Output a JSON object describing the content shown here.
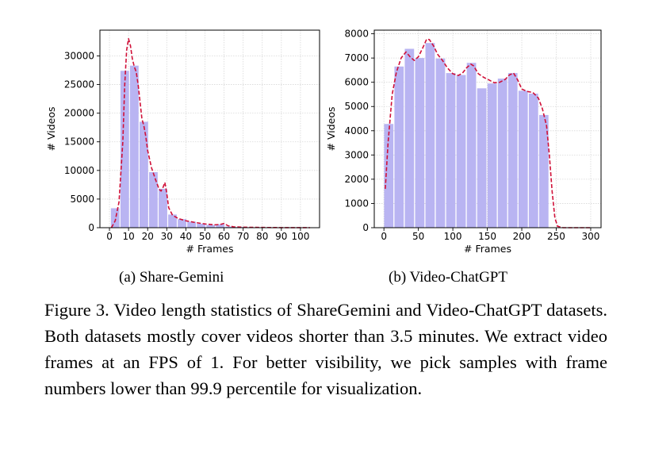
{
  "chart_data": [
    {
      "type": "bar",
      "subcaption": "(a) Share-Gemini",
      "xlabel": "# Frames",
      "ylabel": "# Videos",
      "xlim": [
        -5,
        110
      ],
      "ylim": [
        0,
        34500
      ],
      "xticks": [
        0,
        10,
        20,
        30,
        40,
        50,
        60,
        70,
        80,
        90,
        100
      ],
      "yticks": [
        0,
        5000,
        10000,
        15000,
        20000,
        25000,
        30000
      ],
      "grid": true,
      "bar_width": 4.5,
      "bar_color": "#b9b4f2",
      "curve_color": "#d01038",
      "bars": [
        {
          "x": 3,
          "value": 3400
        },
        {
          "x": 8,
          "value": 27400
        },
        {
          "x": 13,
          "value": 28300
        },
        {
          "x": 18,
          "value": 18500
        },
        {
          "x": 23,
          "value": 9700
        },
        {
          "x": 28,
          "value": 6800
        },
        {
          "x": 33,
          "value": 2300
        },
        {
          "x": 38,
          "value": 1500
        },
        {
          "x": 43,
          "value": 1050
        },
        {
          "x": 48,
          "value": 700
        },
        {
          "x": 53,
          "value": 500
        },
        {
          "x": 58,
          "value": 600
        },
        {
          "x": 63,
          "value": 200
        },
        {
          "x": 68,
          "value": 120
        },
        {
          "x": 73,
          "value": 80
        },
        {
          "x": 78,
          "value": 60
        },
        {
          "x": 83,
          "value": 40
        },
        {
          "x": 88,
          "value": 30
        },
        {
          "x": 93,
          "value": 20
        },
        {
          "x": 98,
          "value": 15
        }
      ],
      "curve": [
        [
          1,
          0
        ],
        [
          3,
          1200
        ],
        [
          5,
          4500
        ],
        [
          7,
          15000
        ],
        [
          8,
          25000
        ],
        [
          9,
          31000
        ],
        [
          10,
          33000
        ],
        [
          11,
          31800
        ],
        [
          12,
          29500
        ],
        [
          13,
          28100
        ],
        [
          14,
          27200
        ],
        [
          15,
          25000
        ],
        [
          16,
          22000
        ],
        [
          17,
          19000
        ],
        [
          18,
          17800
        ],
        [
          19,
          16000
        ],
        [
          20,
          13500
        ],
        [
          22,
          10500
        ],
        [
          24,
          8500
        ],
        [
          26,
          6700
        ],
        [
          27,
          6400
        ],
        [
          28,
          7000
        ],
        [
          29,
          7900
        ],
        [
          30,
          6000
        ],
        [
          31,
          3500
        ],
        [
          33,
          2200
        ],
        [
          36,
          1600
        ],
        [
          40,
          1200
        ],
        [
          45,
          900
        ],
        [
          50,
          650
        ],
        [
          55,
          500
        ],
        [
          58,
          550
        ],
        [
          60,
          750
        ],
        [
          62,
          350
        ],
        [
          65,
          150
        ],
        [
          70,
          80
        ],
        [
          80,
          40
        ],
        [
          90,
          20
        ],
        [
          100,
          10
        ],
        [
          105,
          5
        ]
      ]
    },
    {
      "type": "bar",
      "subcaption": "(b) Video-ChatGPT",
      "xlabel": "# Frames",
      "ylabel": "# Videos",
      "xlim": [
        -14,
        315
      ],
      "ylim": [
        0,
        8150
      ],
      "xticks": [
        0,
        50,
        100,
        150,
        200,
        250,
        300
      ],
      "yticks": [
        0,
        1000,
        2000,
        3000,
        4000,
        5000,
        6000,
        7000,
        8000
      ],
      "grid": true,
      "bar_width": 13.5,
      "bar_color": "#b9b4f2",
      "curve_color": "#d01038",
      "bars": [
        {
          "x": 7,
          "value": 4280
        },
        {
          "x": 22,
          "value": 6650
        },
        {
          "x": 37,
          "value": 7380
        },
        {
          "x": 52,
          "value": 7000
        },
        {
          "x": 67,
          "value": 7620
        },
        {
          "x": 82,
          "value": 6980
        },
        {
          "x": 97,
          "value": 6380
        },
        {
          "x": 112,
          "value": 6300
        },
        {
          "x": 127,
          "value": 6800
        },
        {
          "x": 142,
          "value": 5750
        },
        {
          "x": 157,
          "value": 5950
        },
        {
          "x": 172,
          "value": 6150
        },
        {
          "x": 187,
          "value": 6380
        },
        {
          "x": 202,
          "value": 5650
        },
        {
          "x": 217,
          "value": 5530
        },
        {
          "x": 232,
          "value": 4650
        }
      ],
      "curve": [
        [
          2,
          1600
        ],
        [
          6,
          3500
        ],
        [
          12,
          5500
        ],
        [
          18,
          6400
        ],
        [
          25,
          7000
        ],
        [
          32,
          7250
        ],
        [
          38,
          7050
        ],
        [
          44,
          6900
        ],
        [
          50,
          7050
        ],
        [
          56,
          7400
        ],
        [
          62,
          7780
        ],
        [
          66,
          7760
        ],
        [
          72,
          7500
        ],
        [
          78,
          7150
        ],
        [
          85,
          6900
        ],
        [
          92,
          6600
        ],
        [
          100,
          6350
        ],
        [
          108,
          6280
        ],
        [
          114,
          6380
        ],
        [
          120,
          6600
        ],
        [
          126,
          6750
        ],
        [
          130,
          6680
        ],
        [
          137,
          6350
        ],
        [
          145,
          6200
        ],
        [
          152,
          6100
        ],
        [
          160,
          5980
        ],
        [
          168,
          6000
        ],
        [
          176,
          6120
        ],
        [
          182,
          6300
        ],
        [
          188,
          6380
        ],
        [
          194,
          6100
        ],
        [
          200,
          5720
        ],
        [
          208,
          5620
        ],
        [
          216,
          5580
        ],
        [
          224,
          5350
        ],
        [
          230,
          4900
        ],
        [
          236,
          4200
        ],
        [
          240,
          3000
        ],
        [
          244,
          1500
        ],
        [
          248,
          400
        ],
        [
          252,
          60
        ],
        [
          260,
          0
        ],
        [
          300,
          0
        ]
      ]
    }
  ],
  "caption": "Figure 3. Video length statistics of ShareGemini and Video-ChatGPT datasets. Both datasets mostly cover videos shorter than 3.5 minutes. We extract video frames at an FPS of 1. For better visibility, we pick samples with frame numbers lower than 99.9 percentile for visualization."
}
